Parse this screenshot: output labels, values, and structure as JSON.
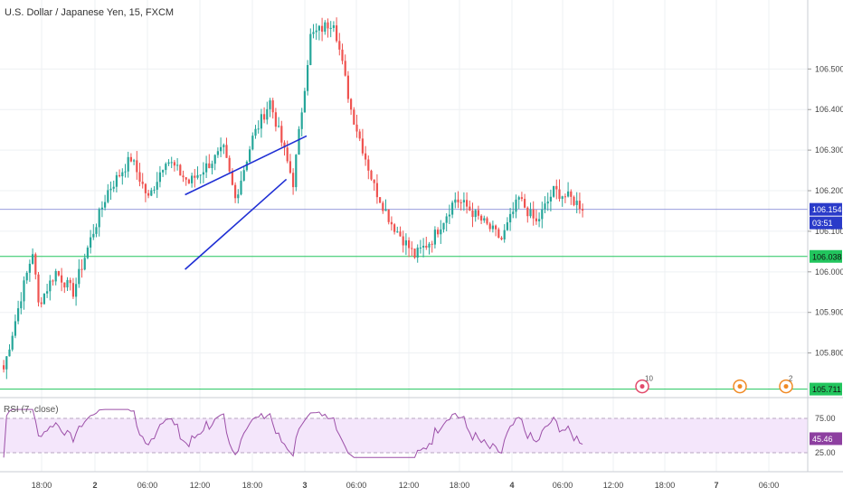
{
  "title": "U.S. Dollar / Japanese Yen, 15, FXCM",
  "chart_data": {
    "type": "candlestick",
    "symbol": "U.S. Dollar / Japanese Yen",
    "interval": "15",
    "source": "FXCM",
    "price_axis": {
      "range": [
        105.69,
        106.67
      ],
      "ticks": [
        "106.500",
        "106.400",
        "106.300",
        "106.200",
        "106.100",
        "106.000",
        "105.900",
        "105.800"
      ]
    },
    "time_axis": {
      "ticks": [
        "18:00",
        "2",
        "06:00",
        "12:00",
        "18:00",
        "3",
        "06:00",
        "12:00",
        "18:00",
        "4",
        "06:00",
        "12:00",
        "18:00",
        "7",
        "06:00"
      ]
    },
    "current_price": "106.154",
    "countdown": "03:51",
    "horizontal_levels": [
      {
        "price": 106.038,
        "label": "106.038",
        "color": "#22c55e"
      },
      {
        "price": 105.711,
        "label": "105.711",
        "color": "#22c55e"
      }
    ],
    "wedge_lines": [
      {
        "from": [
          63.0,
          106.19
        ],
        "to": [
          105.0,
          106.335
        ]
      },
      {
        "from": [
          63.0,
          106.006
        ],
        "to": [
          98.0,
          106.228
        ]
      }
    ],
    "close_anchors": [
      [
        0,
        105.76
      ],
      [
        6,
        105.94
      ],
      [
        10,
        106.05
      ],
      [
        12,
        105.92
      ],
      [
        18,
        106.0
      ],
      [
        24,
        105.95
      ],
      [
        30,
        106.08
      ],
      [
        36,
        106.2
      ],
      [
        44,
        106.28
      ],
      [
        50,
        106.18
      ],
      [
        56,
        106.28
      ],
      [
        64,
        106.22
      ],
      [
        76,
        106.3
      ],
      [
        80,
        106.18
      ],
      [
        86,
        106.33
      ],
      [
        92,
        106.42
      ],
      [
        100,
        106.22
      ],
      [
        106,
        106.58
      ],
      [
        114,
        106.62
      ],
      [
        120,
        106.4
      ],
      [
        128,
        106.21
      ],
      [
        134,
        106.12
      ],
      [
        142,
        106.04
      ],
      [
        148,
        106.08
      ],
      [
        156,
        106.18
      ],
      [
        160,
        106.16
      ],
      [
        166,
        106.12
      ],
      [
        172,
        106.08
      ],
      [
        178,
        106.18
      ],
      [
        184,
        106.12
      ],
      [
        190,
        106.2
      ],
      [
        196,
        106.18
      ],
      [
        200,
        106.16
      ]
    ],
    "rsi": {
      "label": "RSI (7, close)",
      "value": "45.46",
      "ticks": [
        "75.00",
        "25.00"
      ],
      "color": "#9c4fa8"
    },
    "event_markers": [
      {
        "label": "10",
        "color": "#e24a6b"
      },
      {
        "label": "",
        "color": "#f08a24"
      },
      {
        "label": "2",
        "color": "#f08a24"
      }
    ]
  }
}
